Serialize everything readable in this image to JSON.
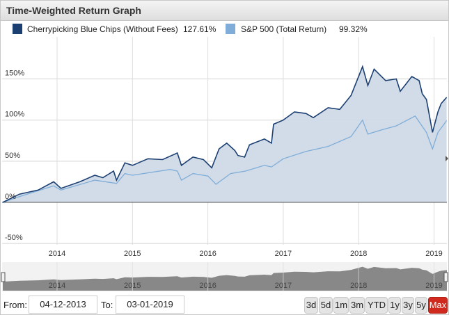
{
  "header": {
    "title": "Time-Weighted Return Graph"
  },
  "legend": [
    {
      "name": "Cherrypicking Blue Chips (Without Fees)",
      "value": "127.61%",
      "color": "#1c3f72"
    },
    {
      "name": "S&P 500 (Total Return)",
      "value": "99.32%",
      "color": "#7fadd8"
    }
  ],
  "chart_data": {
    "type": "area",
    "ylabel": "",
    "xlabel": "",
    "ylim": [
      -50,
      175
    ],
    "yticks": [
      "150%",
      "100%",
      "50%",
      "0%",
      "-50%"
    ],
    "ytick_values": [
      150,
      100,
      50,
      0,
      -50
    ],
    "xticks": [
      "2014",
      "2015",
      "2016",
      "2017",
      "2018",
      "2019"
    ],
    "grid": true,
    "legend_position": "top",
    "series": [
      {
        "name": "Cherrypicking Blue Chips (Without Fees)",
        "color": "#1c3f72",
        "fill": "#cfdae7",
        "points": [
          [
            "2013-04-12",
            0
          ],
          [
            "2013-07-01",
            10
          ],
          [
            "2013-10-01",
            15
          ],
          [
            "2013-12-15",
            25
          ],
          [
            "2014-01-20",
            17
          ],
          [
            "2014-04-20",
            25
          ],
          [
            "2014-07-01",
            33
          ],
          [
            "2014-08-10",
            30
          ],
          [
            "2014-10-01",
            38
          ],
          [
            "2014-10-15",
            27
          ],
          [
            "2014-11-25",
            48
          ],
          [
            "2015-01-01",
            45
          ],
          [
            "2015-03-15",
            53
          ],
          [
            "2015-05-25",
            52
          ],
          [
            "2015-08-05",
            60
          ],
          [
            "2015-08-25",
            45
          ],
          [
            "2015-10-20",
            55
          ],
          [
            "2015-12-10",
            52
          ],
          [
            "2016-01-20",
            42
          ],
          [
            "2016-02-25",
            65
          ],
          [
            "2016-04-01",
            72
          ],
          [
            "2016-05-10",
            63
          ],
          [
            "2016-05-25",
            57
          ],
          [
            "2016-06-27",
            55
          ],
          [
            "2016-07-20",
            70
          ],
          [
            "2016-10-01",
            77
          ],
          [
            "2016-11-05",
            72
          ],
          [
            "2016-11-15",
            95
          ],
          [
            "2017-01-01",
            100
          ],
          [
            "2017-02-25",
            110
          ],
          [
            "2017-04-20",
            108
          ],
          [
            "2017-05-25",
            103
          ],
          [
            "2017-08-05",
            115
          ],
          [
            "2017-10-01",
            113
          ],
          [
            "2017-11-25",
            130
          ],
          [
            "2018-01-20",
            165
          ],
          [
            "2018-02-15",
            142
          ],
          [
            "2018-03-15",
            162
          ],
          [
            "2018-05-10",
            148
          ],
          [
            "2018-07-01",
            150
          ],
          [
            "2018-07-20",
            135
          ],
          [
            "2018-09-15",
            153
          ],
          [
            "2018-10-20",
            148
          ],
          [
            "2018-11-05",
            132
          ],
          [
            "2018-11-25",
            125
          ],
          [
            "2018-12-24",
            85
          ],
          [
            "2019-01-20",
            110
          ],
          [
            "2019-02-05",
            120
          ],
          [
            "2019-03-01",
            127.61
          ]
        ]
      },
      {
        "name": "S&P 500 (Total Return)",
        "color": "#7fadd8",
        "points": [
          [
            "2013-04-12",
            0
          ],
          [
            "2013-07-01",
            7
          ],
          [
            "2013-12-15",
            20
          ],
          [
            "2014-01-20",
            15
          ],
          [
            "2014-07-01",
            27
          ],
          [
            "2014-10-15",
            23
          ],
          [
            "2014-11-25",
            35
          ],
          [
            "2015-01-01",
            33
          ],
          [
            "2015-07-01",
            40
          ],
          [
            "2015-08-05",
            38
          ],
          [
            "2015-08-25",
            27
          ],
          [
            "2015-10-20",
            35
          ],
          [
            "2016-01-01",
            32
          ],
          [
            "2016-02-10",
            22
          ],
          [
            "2016-04-20",
            35
          ],
          [
            "2016-07-01",
            38
          ],
          [
            "2016-10-01",
            45
          ],
          [
            "2016-11-05",
            43
          ],
          [
            "2017-01-01",
            53
          ],
          [
            "2017-04-20",
            62
          ],
          [
            "2017-08-05",
            68
          ],
          [
            "2017-11-25",
            80
          ],
          [
            "2018-01-20",
            100
          ],
          [
            "2018-02-15",
            83
          ],
          [
            "2018-04-20",
            88
          ],
          [
            "2018-07-01",
            93
          ],
          [
            "2018-10-01",
            105
          ],
          [
            "2018-10-20",
            98
          ],
          [
            "2018-11-25",
            85
          ],
          [
            "2018-12-24",
            65
          ],
          [
            "2019-01-20",
            85
          ],
          [
            "2019-03-01",
            99.32
          ]
        ]
      }
    ]
  },
  "navigator": {
    "xticks": [
      "2014",
      "2015",
      "2016",
      "2017",
      "2018",
      "2019"
    ]
  },
  "controls": {
    "from_label": "From:",
    "from_value": "04-12-2013",
    "to_label": "To:",
    "to_value": "03-01-2019",
    "ranges": [
      {
        "label": "3d"
      },
      {
        "label": "5d"
      },
      {
        "label": "1m"
      },
      {
        "label": "3m"
      },
      {
        "label": "YTD"
      },
      {
        "label": "1y"
      },
      {
        "label": "3y"
      },
      {
        "label": "5y"
      },
      {
        "label": "Max",
        "active": true
      }
    ]
  }
}
